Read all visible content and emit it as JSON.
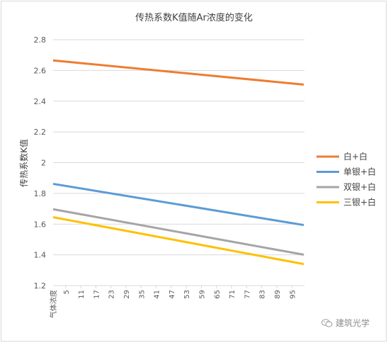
{
  "chart_data": {
    "type": "line",
    "title": "传热系数K值随Ar浓度的变化",
    "ylabel": "传热系数K值",
    "xlabel": "",
    "ylim": [
      1.2,
      2.8
    ],
    "yticks": [
      "1.2",
      "1.4",
      "1.6",
      "1.8",
      "2",
      "2.2",
      "2.4",
      "2.6",
      "2.8"
    ],
    "x_first_label": "气体浓度",
    "x": [
      5,
      11,
      17,
      23,
      29,
      35,
      41,
      47,
      53,
      59,
      65,
      71,
      77,
      83,
      89,
      95
    ],
    "xlim": [
      0,
      100
    ],
    "grid": true,
    "legend_position": "right",
    "series": [
      {
        "name": "白+白",
        "color": "#ed7d31",
        "start": 2.665,
        "end": 2.508
      },
      {
        "name": "单银+白",
        "color": "#5b9bd5",
        "start": 1.862,
        "end": 1.594
      },
      {
        "name": "双银+白",
        "color": "#a5a5a5",
        "start": 1.697,
        "end": 1.401
      },
      {
        "name": "三银+白",
        "color": "#ffc000",
        "start": 1.645,
        "end": 1.34
      }
    ]
  },
  "watermark": {
    "icon": "wechat-icon",
    "text": "建筑光学"
  }
}
